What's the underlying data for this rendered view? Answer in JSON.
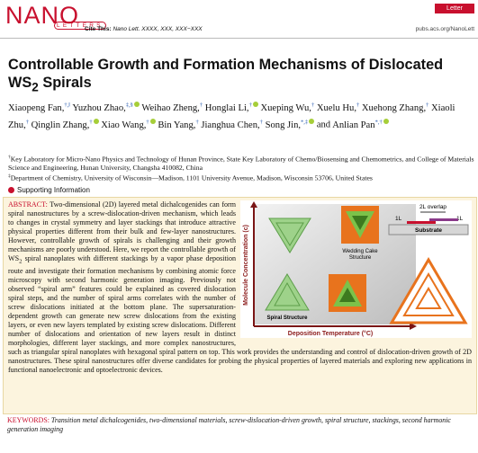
{
  "header": {
    "logo_main": "NANO",
    "logo_sub": "LETTERS",
    "article_type": "Letter",
    "cite_label": "Cite This:",
    "cite_text": "Nano Lett. XXXX, XXX, XXX−XXX",
    "url": "pubs.acs.org/NanoLett"
  },
  "title": {
    "text": "Controllable Growth and Formation Mechanisms of Dislocated WS",
    "subscript": "2",
    "text_end": "Spirals"
  },
  "authors": [
    {
      "name": "Xiaopeng Fan,",
      "sup": "†,‖",
      "orcid": false
    },
    {
      "name": "Yuzhou Zhao,",
      "sup": "‡,§",
      "orcid": true
    },
    {
      "name": "Weihao Zheng,",
      "sup": "†",
      "orcid": false
    },
    {
      "name": "Honglai Li,",
      "sup": "†",
      "orcid": true
    },
    {
      "name": "Xueping Wu,",
      "sup": "†",
      "orcid": false
    },
    {
      "name": "Xuelu Hu,",
      "sup": "†",
      "orcid": false
    },
    {
      "name": "Xuehong Zhang,",
      "sup": "†",
      "orcid": false
    },
    {
      "name": "Xiaoli Zhu,",
      "sup": "†",
      "orcid": false
    },
    {
      "name": "Qinglin Zhang,",
      "sup": "†",
      "orcid": true
    },
    {
      "name": "Xiao Wang,",
      "sup": "†",
      "orcid": true
    },
    {
      "name": "Bin Yang,",
      "sup": "†",
      "orcid": false
    },
    {
      "name": "Jianghua Chen,",
      "sup": "†",
      "orcid": false
    },
    {
      "name": "Song Jin,",
      "sup": "*,‡",
      "orcid": true
    },
    {
      "name": "Anlian Pan",
      "sup": "*,†",
      "orcid": true
    }
  ],
  "authors_conjunction": "and",
  "affiliations": [
    {
      "mark": "†",
      "text": "Key Laboratory for Micro-Nano Physics and Technology of Hunan Province, State Key Laboratory of Chemo/Biosensing and Chemometrics, and College of Materials Science and Engineering, Hunan University, Changsha 410082, China"
    },
    {
      "mark": "‡",
      "text": "Department of Chemistry, University of Wisconsin—Madison, 1101 University Avenue, Madison, Wisconsin 53706, United States"
    }
  ],
  "supporting_information": "Supporting Information",
  "abstract": {
    "label": "ABSTRACT:",
    "text_parts": [
      "Two-dimensional (2D) layered metal dichalcogenides can form spiral nanostructures by a screw-dislocation-driven mechanism, which leads to changes in crystal symmetry and layer stackings that introduce attractive physical properties different from their bulk and few-layer nanostructures. However, controllable growth of spirals is challenging and their growth mechanisms are poorly understood. Here, we report the controllable growth of WS",
      "2",
      " spiral nanoplates with different stackings by a vapor phase deposition route and investigate their formation mechanisms by combining atomic force microscopy with second harmonic generation imaging. Previously not observed “spiral arm” features could be explained as covered dislocation spiral steps, and the number of spiral arms correlates with the number of screw dislocations initiated at the bottom plane. The supersaturation-dependent growth can generate new screw dislocations from the existing layers, or even new layers templated by existing screw dislocations. Different number of dislocations and orientation of new layers result in distinct morphologies, different layer stackings, and more complex nanostructures, such as triangular spiral nanoplates with hexagonal spiral pattern on top. This work provides the understanding and control of dislocation-driven growth of 2D nanostructures. These spiral nanostructures offer diverse candidates for probing the physical properties of layered materials and exploring new applications in functional nanoelectronic and optoelectronic devices."
    ]
  },
  "figure": {
    "y_axis": "Molecule Concentration (c)",
    "x_axis": "Deposition Temperature (°C)",
    "wedding_cake": [
      "Wedding Cake",
      "Structure"
    ],
    "spiral": "Spiral Structure",
    "overlap": "2L overlap",
    "layer_left": "1L",
    "layer_right": "1L",
    "substrate": "Substrate"
  },
  "keywords": {
    "label": "KEYWORDS:",
    "text": "Transition metal dichalcogenides, two-dimensional materials, screw-dislocation-driven growth, spiral structure, stackings, second harmonic generation imaging"
  }
}
